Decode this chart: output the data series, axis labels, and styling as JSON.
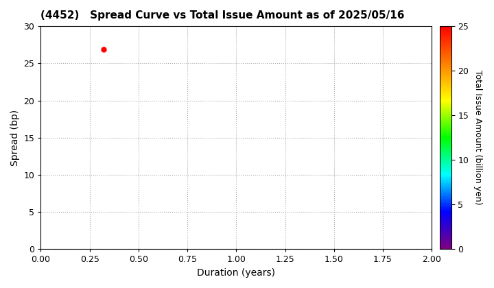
{
  "title": "(4452)   Spread Curve vs Total Issue Amount as of 2025/05/16",
  "xlabel": "Duration (years)",
  "ylabel": "Spread (bp)",
  "colorbar_label": "Total Issue Amount (billion yen)",
  "xlim": [
    0.0,
    2.0
  ],
  "ylim": [
    0,
    30
  ],
  "xticks": [
    0.0,
    0.25,
    0.5,
    0.75,
    1.0,
    1.25,
    1.5,
    1.75,
    2.0
  ],
  "yticks": [
    0,
    5,
    10,
    15,
    20,
    25,
    30
  ],
  "colorbar_ticks": [
    0,
    5,
    10,
    15,
    20,
    25
  ],
  "colorbar_vmin": 0,
  "colorbar_vmax": 25,
  "scatter_x": [
    0.32
  ],
  "scatter_y": [
    26.9
  ],
  "scatter_values": [
    25.0
  ],
  "marker_size": 25,
  "grid_color": "#aaaaaa",
  "background_color": "#ffffff",
  "title_fontsize": 11,
  "axis_label_fontsize": 10,
  "tick_fontsize": 9,
  "colorbar_fontsize": 9
}
